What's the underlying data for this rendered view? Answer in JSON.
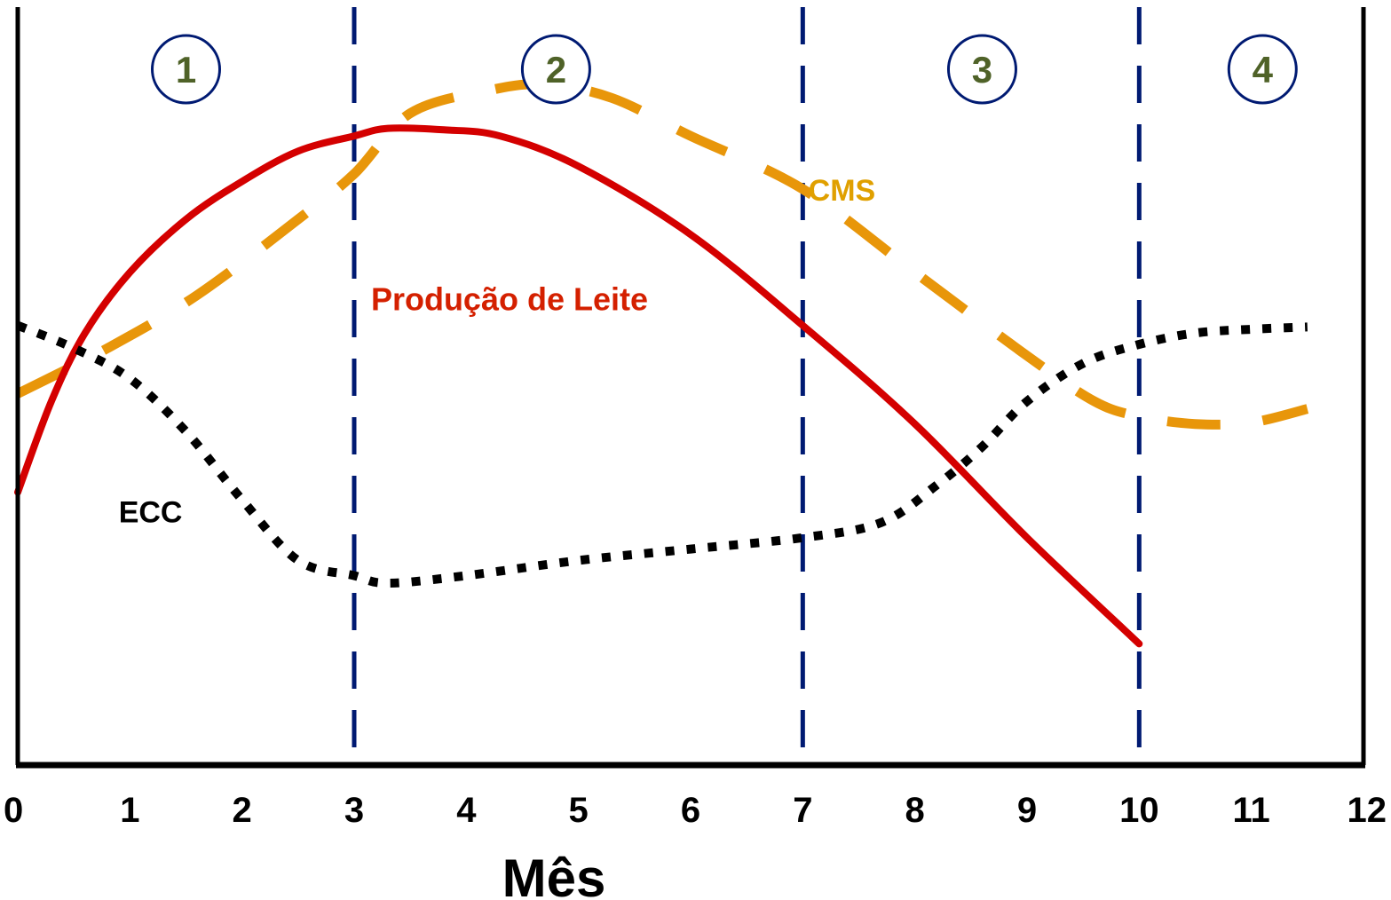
{
  "chart_data": {
    "type": "line",
    "xlabel": "Mês",
    "ylabel": "",
    "title": "",
    "xlim": [
      0,
      12
    ],
    "ylim": [
      0,
      100
    ],
    "x_ticks": [
      {
        "value": 0,
        "label": "0"
      },
      {
        "value": 1,
        "label": "1"
      },
      {
        "value": 2,
        "label": "2"
      },
      {
        "value": 3,
        "label": "3"
      },
      {
        "value": 4,
        "label": "4"
      },
      {
        "value": 5,
        "label": "5"
      },
      {
        "value": 6,
        "label": "6"
      },
      {
        "value": 7,
        "label": "7"
      },
      {
        "value": 8,
        "label": "8"
      },
      {
        "value": 9,
        "label": "9"
      },
      {
        "value": 10,
        "label": "10"
      },
      {
        "value": 11,
        "label": "11"
      },
      {
        "value": 12,
        "label": "12"
      }
    ],
    "phase_boundaries": [
      3,
      7,
      10
    ],
    "phases": [
      {
        "label": "1",
        "x": 1.5
      },
      {
        "label": "2",
        "x": 4.8
      },
      {
        "label": "3",
        "x": 8.6
      },
      {
        "label": "4",
        "x": 11.1
      }
    ],
    "series": [
      {
        "name": "Produção de Leite",
        "color": "#d40000",
        "style": "solid",
        "label_x": 3.15,
        "label_y": 60,
        "points": [
          [
            0,
            36
          ],
          [
            0.3,
            48
          ],
          [
            0.6,
            57
          ],
          [
            1,
            65
          ],
          [
            1.5,
            72
          ],
          [
            2,
            77
          ],
          [
            2.5,
            81
          ],
          [
            3,
            83
          ],
          [
            3.3,
            84
          ],
          [
            3.8,
            83.8
          ],
          [
            4.3,
            83
          ],
          [
            5,
            79
          ],
          [
            6,
            70
          ],
          [
            7,
            58
          ],
          [
            8,
            45
          ],
          [
            9,
            30
          ],
          [
            10,
            16
          ]
        ]
      },
      {
        "name": "CMS",
        "color": "#e8960a",
        "style": "dashed",
        "label_x": 7.05,
        "label_y": 74.5,
        "points": [
          [
            0,
            49
          ],
          [
            0.8,
            55
          ],
          [
            1.6,
            62
          ],
          [
            2.5,
            72
          ],
          [
            3,
            78
          ],
          [
            3.5,
            86
          ],
          [
            4.2,
            89
          ],
          [
            4.7,
            89.8
          ],
          [
            5.3,
            88
          ],
          [
            6,
            83
          ],
          [
            7,
            76
          ],
          [
            8,
            65
          ],
          [
            9,
            54
          ],
          [
            9.6,
            48
          ],
          [
            10,
            46
          ],
          [
            10.5,
            45
          ],
          [
            11,
            45.2
          ],
          [
            11.5,
            47
          ]
        ]
      },
      {
        "name": "ECC",
        "color": "#000000",
        "style": "dotted",
        "label_x": 0.9,
        "label_y": 32,
        "points": [
          [
            0,
            58
          ],
          [
            0.5,
            55
          ],
          [
            1,
            51
          ],
          [
            1.5,
            44
          ],
          [
            2,
            35
          ],
          [
            2.5,
            27
          ],
          [
            3,
            25
          ],
          [
            3.3,
            24
          ],
          [
            4,
            25
          ],
          [
            5,
            27
          ],
          [
            6,
            28.5
          ],
          [
            7,
            30
          ],
          [
            7.7,
            32
          ],
          [
            8.2,
            37
          ],
          [
            8.6,
            42
          ],
          [
            9,
            48
          ],
          [
            9.5,
            53
          ],
          [
            10,
            55.5
          ],
          [
            10.5,
            57
          ],
          [
            11,
            57.5
          ],
          [
            11.5,
            57.8
          ]
        ]
      }
    ]
  }
}
